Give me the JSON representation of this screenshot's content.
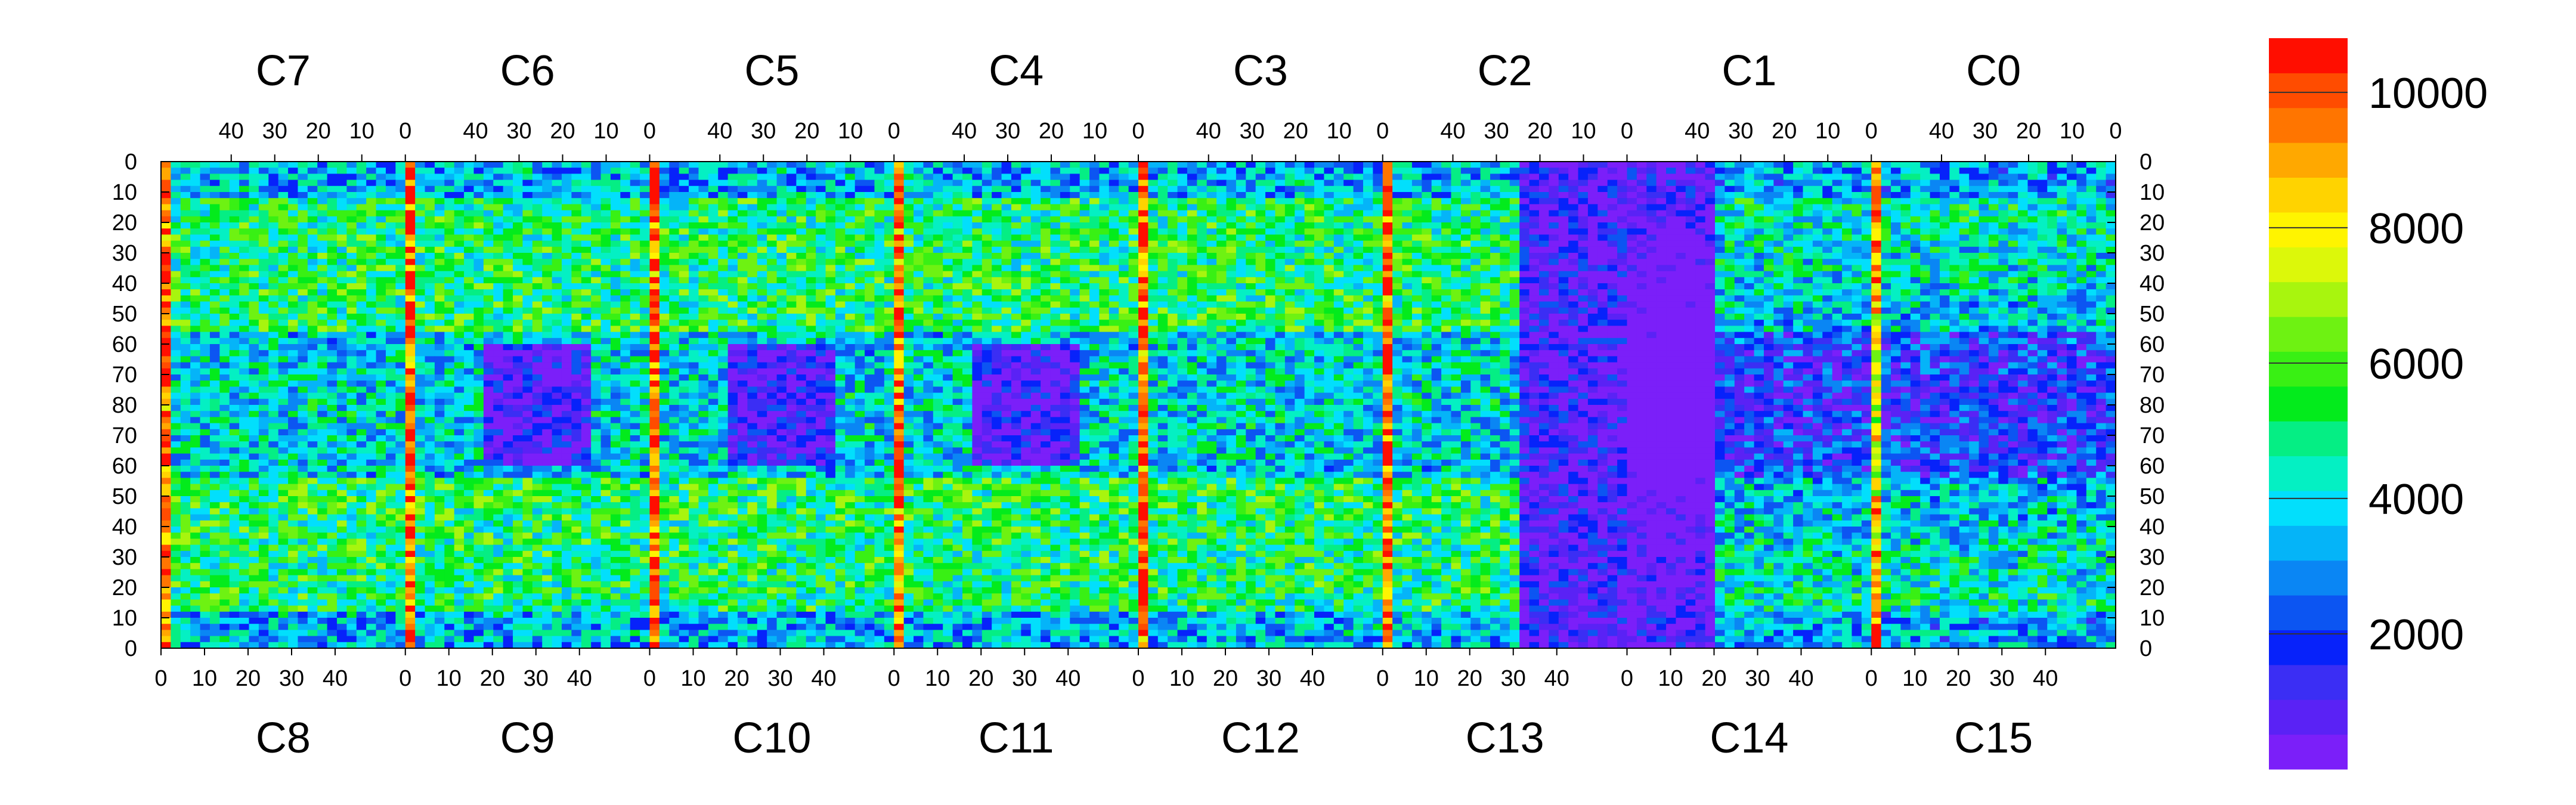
{
  "chart_data": {
    "type": "heatmap",
    "title": "",
    "top_sections": [
      "C7",
      "C6",
      "C5",
      "C4",
      "C3",
      "C2",
      "C1",
      "C0"
    ],
    "bottom_sections": [
      "C8",
      "C9",
      "C10",
      "C11",
      "C12",
      "C13",
      "C14",
      "C15"
    ],
    "top_ticks": [
      "40",
      "30",
      "20",
      "10",
      "0"
    ],
    "bottom_ticks": [
      "0",
      "10",
      "20",
      "30",
      "40"
    ],
    "y_ticks": [
      "0",
      "10",
      "20",
      "30",
      "40",
      "50",
      "60",
      "70",
      "80",
      "70",
      "60",
      "50",
      "40",
      "30",
      "20",
      "10",
      "0"
    ],
    "colorbar": {
      "min": 0,
      "max": 10800,
      "ticks": [
        {
          "value": 2000,
          "label": "2000"
        },
        {
          "value": 4000,
          "label": "4000"
        },
        {
          "value": 6000,
          "label": "6000"
        },
        {
          "value": 8000,
          "label": "8000"
        },
        {
          "value": 10000,
          "label": "10000"
        }
      ],
      "colors": [
        "#7b1ff9",
        "#5a22f5",
        "#3b2ef4",
        "#0722fa",
        "#0c55f2",
        "#0a86f4",
        "#05b4f8",
        "#02dffc",
        "#04f0c3",
        "#05ee84",
        "#03eb1c",
        "#39f014",
        "#6ef212",
        "#a8f50e",
        "#dcf80a",
        "#fff400",
        "#ffd300",
        "#ffa800",
        "#ff7500",
        "#ff4c00",
        "#ff0e00"
      ]
    },
    "grid": false,
    "legend": "colorbar-right"
  }
}
